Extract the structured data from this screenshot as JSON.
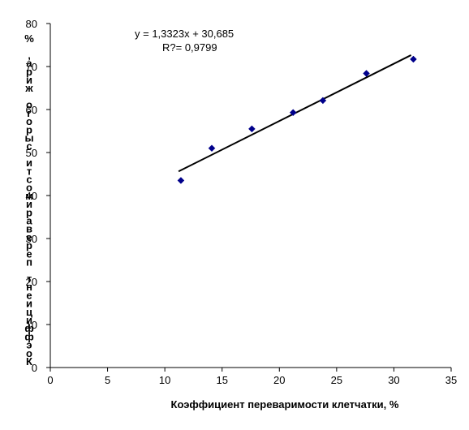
{
  "chart_data": {
    "type": "scatter",
    "title": "",
    "xlabel": "Коэффициент переваримости клетчатки, %",
    "ylabel": "Коэффициент переваримости сырого жира, %",
    "xlim": [
      0,
      35
    ],
    "ylim": [
      0,
      80
    ],
    "x_ticks": [
      0,
      5,
      10,
      15,
      20,
      25,
      30,
      35
    ],
    "y_ticks": [
      0,
      10,
      20,
      30,
      40,
      50,
      60,
      70,
      80
    ],
    "grid": false,
    "legend": "none",
    "series": [
      {
        "points": [
          {
            "x": 11.4,
            "y": 43.5
          },
          {
            "x": 14.1,
            "y": 51.0
          },
          {
            "x": 17.6,
            "y": 55.5
          },
          {
            "x": 21.2,
            "y": 59.3
          },
          {
            "x": 23.8,
            "y": 62.1
          },
          {
            "x": 27.6,
            "y": 68.4
          },
          {
            "x": 31.7,
            "y": 71.7
          }
        ],
        "marker_color": "#00008b"
      }
    ],
    "trendline": {
      "slope": 1.3323,
      "intercept": 30.685,
      "x_range": [
        11.2,
        31.5
      ],
      "color": "#000000"
    },
    "annotations": {
      "equation": "y = 1,3323x + 30,685",
      "r_squared": "R?= 0,9799"
    }
  }
}
